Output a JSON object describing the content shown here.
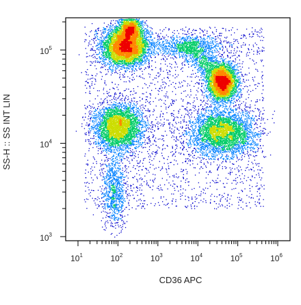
{
  "chart_data": {
    "type": "scatter",
    "subtype": "flow-cytometry-density-dot-plot",
    "xlabel": "CD36 APC",
    "ylabel": "SS-H :: SS INT LIN",
    "x_scale": "log",
    "y_scale": "log",
    "xlim": [
      10,
      1000000
    ],
    "ylim": [
      1000,
      200000
    ],
    "x_ticks": [
      {
        "base": "10",
        "exp": "1",
        "value": 10
      },
      {
        "base": "10",
        "exp": "2",
        "value": 100
      },
      {
        "base": "10",
        "exp": "3",
        "value": 1000
      },
      {
        "base": "10",
        "exp": "4",
        "value": 10000
      },
      {
        "base": "10",
        "exp": "5",
        "value": 100000
      },
      {
        "base": "10",
        "exp": "6",
        "value": 1000000
      }
    ],
    "y_ticks": [
      {
        "base": "10",
        "exp": "3",
        "value": 1000
      },
      {
        "base": "10",
        "exp": "4",
        "value": 10000
      },
      {
        "base": "10",
        "exp": "5",
        "value": 100000
      }
    ],
    "grid": false,
    "legend": "none",
    "color_scale": [
      "#0000cc",
      "#0080ff",
      "#00cc66",
      "#ccdd00",
      "#ff8800",
      "#ee0000"
    ],
    "populations": [
      {
        "center_x": 150,
        "center_y": 110000,
        "spread_x_decades": 0.28,
        "spread_y_decades": 0.1,
        "density": "very high"
      },
      {
        "center_x": 200,
        "center_y": 170000,
        "spread_x_decades": 0.15,
        "spread_y_decades": 0.06,
        "density": "medium"
      },
      {
        "center_x": 100,
        "center_y": 15000,
        "spread_x_decades": 0.3,
        "spread_y_decades": 0.12,
        "density": "high"
      },
      {
        "center_x": 40000,
        "center_y": 13000,
        "spread_x_decades": 0.4,
        "spread_y_decades": 0.12,
        "density": "high"
      },
      {
        "center_x": 40000,
        "center_y": 45000,
        "spread_x_decades": 0.18,
        "spread_y_decades": 0.1,
        "density": "high"
      },
      {
        "center_x": 6000,
        "center_y": 110000,
        "spread_x_decades": 0.45,
        "spread_y_decades": 0.06,
        "density": "low"
      },
      {
        "center_x": 80,
        "center_y": 3000,
        "spread_x_decades": 0.15,
        "spread_y_decades": 0.2,
        "density": "low"
      }
    ]
  }
}
